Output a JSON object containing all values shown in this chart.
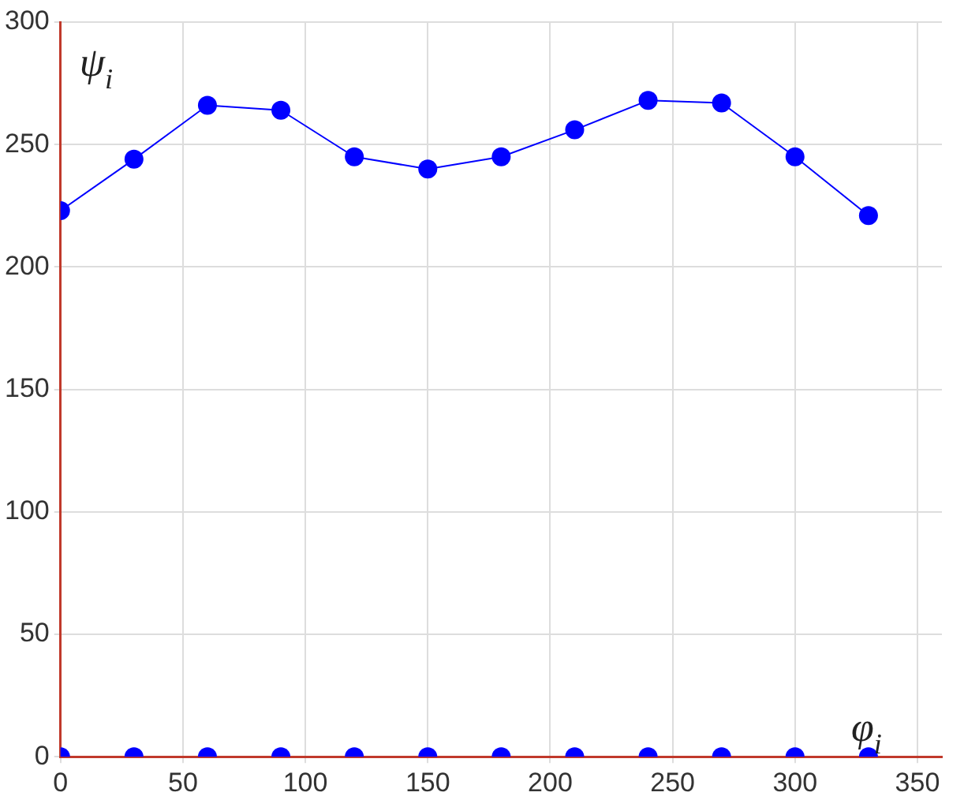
{
  "chart_data": {
    "type": "line",
    "xlabel": "φ$_{i}$",
    "ylabel": "ψ$_{i}$",
    "xlim": [
      0,
      360
    ],
    "xticks": [
      0,
      50,
      100,
      150,
      200,
      250,
      300,
      350
    ],
    "ylim": [
      0,
      300
    ],
    "yticks": [
      0,
      50,
      100,
      150,
      200,
      250,
      300
    ],
    "grid": true,
    "legend": false,
    "marker": "circle",
    "line_style": "solid",
    "series": [
      {
        "color": "#0000ff",
        "x": [
          0,
          30,
          60,
          90,
          120,
          150,
          180,
          210,
          240,
          270,
          300,
          330
        ],
        "values": [
          223,
          244,
          266,
          264,
          245,
          240,
          245,
          256,
          268,
          267,
          245,
          221
        ]
      },
      {
        "type": "scatter",
        "color": "#0000ff",
        "x": [
          0,
          30,
          60,
          90,
          120,
          150,
          180,
          210,
          240,
          270,
          300,
          330
        ],
        "values": [
          0,
          0,
          0,
          0,
          0,
          0,
          0,
          0,
          0,
          0,
          0,
          0
        ]
      }
    ]
  }
}
